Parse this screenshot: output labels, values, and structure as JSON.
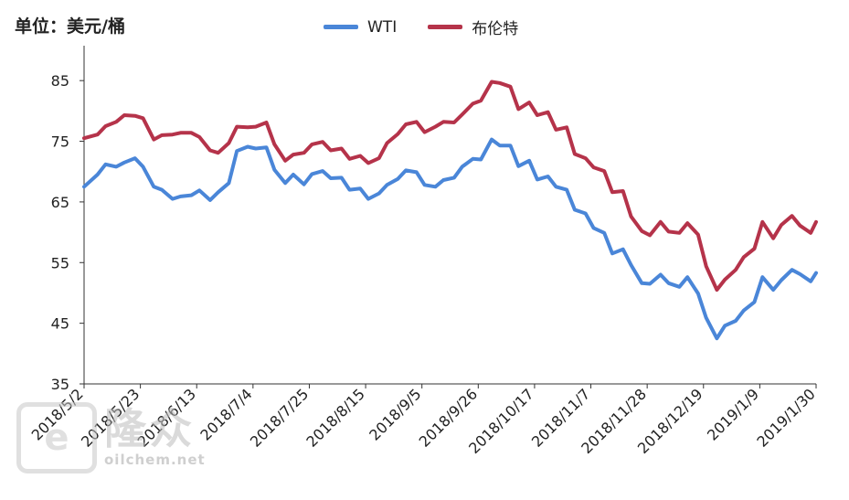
{
  "unit_label": "单位：美元/桶",
  "legend": {
    "wti": "WTI",
    "brent": "布伦特"
  },
  "colors": {
    "wti": "#4a86d8",
    "brent": "#b5334a",
    "axis": "#333333"
  },
  "watermark": {
    "icon": "e-logo-icon",
    "cn": "隆众",
    "url": "oilchem.net"
  },
  "chart_data": {
    "type": "line",
    "title": "",
    "xlabel": "",
    "ylabel": "单位：美元/桶",
    "ylim": [
      35,
      90
    ],
    "yticks": [
      35,
      45,
      55,
      65,
      75,
      85
    ],
    "x_tick_labels": [
      "2018/5/2",
      "2018/5/23",
      "2018/6/13",
      "2018/7/4",
      "2018/7/25",
      "2018/8/15",
      "2018/9/5",
      "2018/9/26",
      "2018/10/17",
      "2018/11/7",
      "2018/11/28",
      "2018/12/19",
      "2019/1/9",
      "2019/1/30"
    ],
    "x_start": "2018/5/2",
    "x_end": "2019/1/30",
    "legend_position": "top",
    "grid": false,
    "series": [
      {
        "name": "WTI",
        "points": [
          [
            "2018/5/2",
            67.5
          ],
          [
            "2018/5/7",
            69.5
          ],
          [
            "2018/5/10",
            71.2
          ],
          [
            "2018/5/14",
            70.8
          ],
          [
            "2018/5/17",
            71.5
          ],
          [
            "2018/5/21",
            72.2
          ],
          [
            "2018/5/24",
            70.8
          ],
          [
            "2018/5/28",
            67.5
          ],
          [
            "2018/5/31",
            67.0
          ],
          [
            "2018/6/4",
            65.5
          ],
          [
            "2018/6/7",
            65.9
          ],
          [
            "2018/6/11",
            66.1
          ],
          [
            "2018/6/14",
            66.9
          ],
          [
            "2018/6/18",
            65.3
          ],
          [
            "2018/6/21",
            66.6
          ],
          [
            "2018/6/25",
            68.1
          ],
          [
            "2018/6/28",
            73.4
          ],
          [
            "2018/7/2",
            74.1
          ],
          [
            "2018/7/5",
            73.8
          ],
          [
            "2018/7/9",
            74.0
          ],
          [
            "2018/7/12",
            70.3
          ],
          [
            "2018/7/16",
            68.1
          ],
          [
            "2018/7/19",
            69.5
          ],
          [
            "2018/7/23",
            67.9
          ],
          [
            "2018/7/26",
            69.6
          ],
          [
            "2018/7/30",
            70.1
          ],
          [
            "2018/8/2",
            68.9
          ],
          [
            "2018/8/6",
            69.0
          ],
          [
            "2018/8/9",
            67.0
          ],
          [
            "2018/8/13",
            67.2
          ],
          [
            "2018/8/16",
            65.5
          ],
          [
            "2018/8/20",
            66.4
          ],
          [
            "2018/8/23",
            67.8
          ],
          [
            "2018/8/27",
            68.8
          ],
          [
            "2018/8/30",
            70.2
          ],
          [
            "2018/9/3",
            69.9
          ],
          [
            "2018/9/6",
            67.8
          ],
          [
            "2018/9/10",
            67.5
          ],
          [
            "2018/9/13",
            68.6
          ],
          [
            "2018/9/17",
            69.0
          ],
          [
            "2018/9/20",
            70.8
          ],
          [
            "2018/9/24",
            72.1
          ],
          [
            "2018/9/27",
            72.0
          ],
          [
            "2018/10/1",
            75.3
          ],
          [
            "2018/10/4",
            74.3
          ],
          [
            "2018/10/8",
            74.3
          ],
          [
            "2018/10/11",
            70.9
          ],
          [
            "2018/10/15",
            71.8
          ],
          [
            "2018/10/18",
            68.7
          ],
          [
            "2018/10/22",
            69.2
          ],
          [
            "2018/10/25",
            67.5
          ],
          [
            "2018/10/29",
            67.0
          ],
          [
            "2018/11/1",
            63.7
          ],
          [
            "2018/11/5",
            63.1
          ],
          [
            "2018/11/8",
            60.7
          ],
          [
            "2018/11/12",
            59.9
          ],
          [
            "2018/11/15",
            56.5
          ],
          [
            "2018/11/19",
            57.2
          ],
          [
            "2018/11/22",
            54.6
          ],
          [
            "2018/11/26",
            51.6
          ],
          [
            "2018/11/29",
            51.5
          ],
          [
            "2018/12/3",
            53.0
          ],
          [
            "2018/12/6",
            51.6
          ],
          [
            "2018/12/10",
            51.0
          ],
          [
            "2018/12/13",
            52.6
          ],
          [
            "2018/12/17",
            49.9
          ],
          [
            "2018/12/20",
            45.9
          ],
          [
            "2018/12/24",
            42.5
          ],
          [
            "2018/12/27",
            44.6
          ],
          [
            "2018/12/31",
            45.4
          ],
          [
            "2019/1/3",
            47.1
          ],
          [
            "2019/1/7",
            48.5
          ],
          [
            "2019/1/10",
            52.6
          ],
          [
            "2019/1/14",
            50.5
          ],
          [
            "2019/1/17",
            52.1
          ],
          [
            "2019/1/21",
            53.8
          ],
          [
            "2019/1/24",
            53.1
          ],
          [
            "2019/1/28",
            51.9
          ],
          [
            "2019/1/30",
            53.3
          ]
        ]
      },
      {
        "name": "布伦特",
        "points": [
          [
            "2018/5/2",
            75.5
          ],
          [
            "2018/5/7",
            76.1
          ],
          [
            "2018/5/10",
            77.5
          ],
          [
            "2018/5/14",
            78.2
          ],
          [
            "2018/5/17",
            79.3
          ],
          [
            "2018/5/21",
            79.2
          ],
          [
            "2018/5/24",
            78.8
          ],
          [
            "2018/5/28",
            75.3
          ],
          [
            "2018/5/31",
            76.0
          ],
          [
            "2018/6/4",
            76.1
          ],
          [
            "2018/6/7",
            76.4
          ],
          [
            "2018/6/11",
            76.4
          ],
          [
            "2018/6/14",
            75.7
          ],
          [
            "2018/6/18",
            73.5
          ],
          [
            "2018/6/21",
            73.1
          ],
          [
            "2018/6/25",
            74.7
          ],
          [
            "2018/6/28",
            77.4
          ],
          [
            "2018/7/2",
            77.3
          ],
          [
            "2018/7/5",
            77.4
          ],
          [
            "2018/7/9",
            78.1
          ],
          [
            "2018/7/12",
            74.5
          ],
          [
            "2018/7/16",
            71.8
          ],
          [
            "2018/7/19",
            72.8
          ],
          [
            "2018/7/23",
            73.1
          ],
          [
            "2018/7/26",
            74.5
          ],
          [
            "2018/7/30",
            74.9
          ],
          [
            "2018/8/2",
            73.5
          ],
          [
            "2018/8/6",
            73.8
          ],
          [
            "2018/8/9",
            72.1
          ],
          [
            "2018/8/13",
            72.6
          ],
          [
            "2018/8/16",
            71.4
          ],
          [
            "2018/8/20",
            72.2
          ],
          [
            "2018/8/23",
            74.7
          ],
          [
            "2018/8/27",
            76.2
          ],
          [
            "2018/8/30",
            77.8
          ],
          [
            "2018/9/3",
            78.2
          ],
          [
            "2018/9/6",
            76.5
          ],
          [
            "2018/9/10",
            77.4
          ],
          [
            "2018/9/13",
            78.2
          ],
          [
            "2018/9/17",
            78.1
          ],
          [
            "2018/9/20",
            79.4
          ],
          [
            "2018/9/24",
            81.2
          ],
          [
            "2018/9/27",
            81.7
          ],
          [
            "2018/10/1",
            84.8
          ],
          [
            "2018/10/4",
            84.6
          ],
          [
            "2018/10/8",
            84.0
          ],
          [
            "2018/10/11",
            80.3
          ],
          [
            "2018/10/15",
            81.4
          ],
          [
            "2018/10/18",
            79.3
          ],
          [
            "2018/10/22",
            79.8
          ],
          [
            "2018/10/25",
            76.9
          ],
          [
            "2018/10/29",
            77.3
          ],
          [
            "2018/11/1",
            72.9
          ],
          [
            "2018/11/5",
            72.2
          ],
          [
            "2018/11/8",
            70.7
          ],
          [
            "2018/11/12",
            70.1
          ],
          [
            "2018/11/15",
            66.6
          ],
          [
            "2018/11/19",
            66.8
          ],
          [
            "2018/11/22",
            62.6
          ],
          [
            "2018/11/26",
            60.2
          ],
          [
            "2018/11/29",
            59.5
          ],
          [
            "2018/12/3",
            61.7
          ],
          [
            "2018/12/6",
            60.1
          ],
          [
            "2018/12/10",
            59.9
          ],
          [
            "2018/12/13",
            61.5
          ],
          [
            "2018/12/17",
            59.6
          ],
          [
            "2018/12/20",
            54.4
          ],
          [
            "2018/12/24",
            50.5
          ],
          [
            "2018/12/27",
            52.2
          ],
          [
            "2018/12/31",
            53.8
          ],
          [
            "2019/1/3",
            55.9
          ],
          [
            "2019/1/7",
            57.3
          ],
          [
            "2019/1/10",
            61.7
          ],
          [
            "2019/1/14",
            59.0
          ],
          [
            "2019/1/17",
            61.2
          ],
          [
            "2019/1/21",
            62.7
          ],
          [
            "2019/1/24",
            61.1
          ],
          [
            "2019/1/28",
            59.9
          ],
          [
            "2019/1/30",
            61.7
          ]
        ]
      }
    ]
  }
}
